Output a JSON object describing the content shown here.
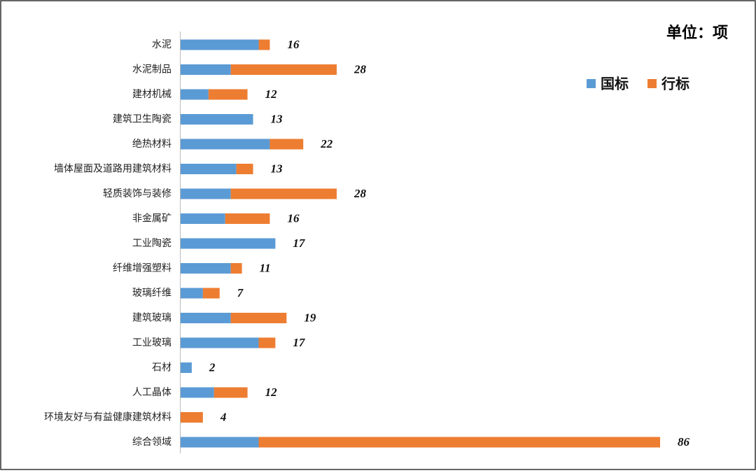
{
  "chart_data": {
    "type": "stacked-barh",
    "unit": "单位：项",
    "categories": [
      "水泥",
      "水泥制品",
      "建材机械",
      "建筑卫生陶瓷",
      "绝热材料",
      "墙体屋面及道路用建筑材料",
      "轻质装饰与装修",
      "非金属矿",
      "工业陶瓷",
      "纤维增强塑料",
      "玻璃纤维",
      "建筑玻璃",
      "工业玻璃",
      "石材",
      "人工晶体",
      "环境友好与有益健康建筑材料",
      "综合领域"
    ],
    "series": [
      {
        "name": "国标",
        "color": "#5b9bd5",
        "values": [
          14,
          9,
          5,
          13,
          16,
          10,
          9,
          8,
          17,
          9,
          4,
          9,
          14,
          2,
          6,
          0,
          14
        ]
      },
      {
        "name": "行标",
        "color": "#ed7d31",
        "values": [
          2,
          19,
          7,
          0,
          6,
          3,
          19,
          8,
          0,
          2,
          3,
          10,
          3,
          0,
          6,
          4,
          72
        ]
      }
    ],
    "totals": [
      16,
      28,
      12,
      13,
      22,
      13,
      28,
      16,
      17,
      11,
      7,
      19,
      17,
      2,
      12,
      4,
      86
    ],
    "legend": "top-right"
  }
}
